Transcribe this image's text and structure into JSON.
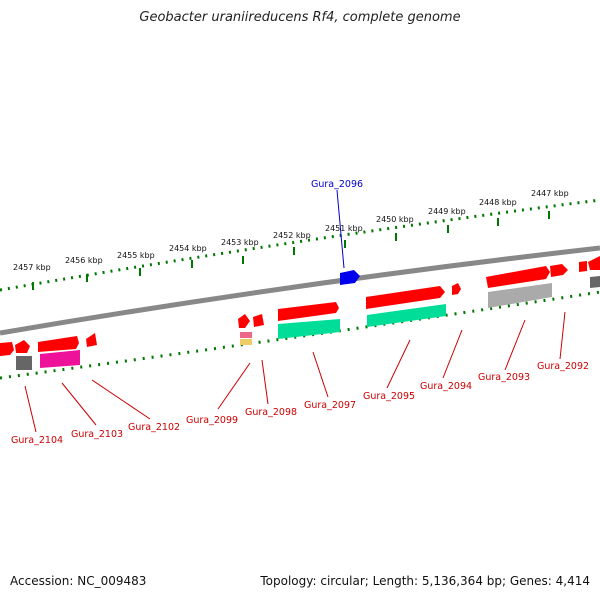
{
  "title": "Geobacter uraniireducens Rf4, complete genome",
  "footer": {
    "accession": "Accession: NC_009483",
    "summary": "Topology: circular; Length: 5,136,364 bp; Genes: 4,414"
  },
  "scale_labels": [
    "2457 kbp",
    "2456 kbp",
    "2455 kbp",
    "2454 kbp",
    "2453 kbp",
    "2452 kbp",
    "2451 kbp",
    "2450 kbp",
    "2449 kbp",
    "2448 kbp",
    "2447 kbp"
  ],
  "highlighted_gene": "Gura_2096",
  "gene_labels": [
    "Gura_2104",
    "Gura_2103",
    "Gura_2102",
    "Gura_2099",
    "Gura_2098",
    "Gura_2097",
    "Gura_2095",
    "Gura_2094",
    "Gura_2093",
    "Gura_2092"
  ],
  "colors": {
    "forward": "#ff0000",
    "cds_green": "#00dd99",
    "cds_pink": "#ee1199",
    "cds_gray": "#aaaaaa",
    "highlight": "#0000ee",
    "scale": "#007700",
    "backbone": "#888888"
  }
}
